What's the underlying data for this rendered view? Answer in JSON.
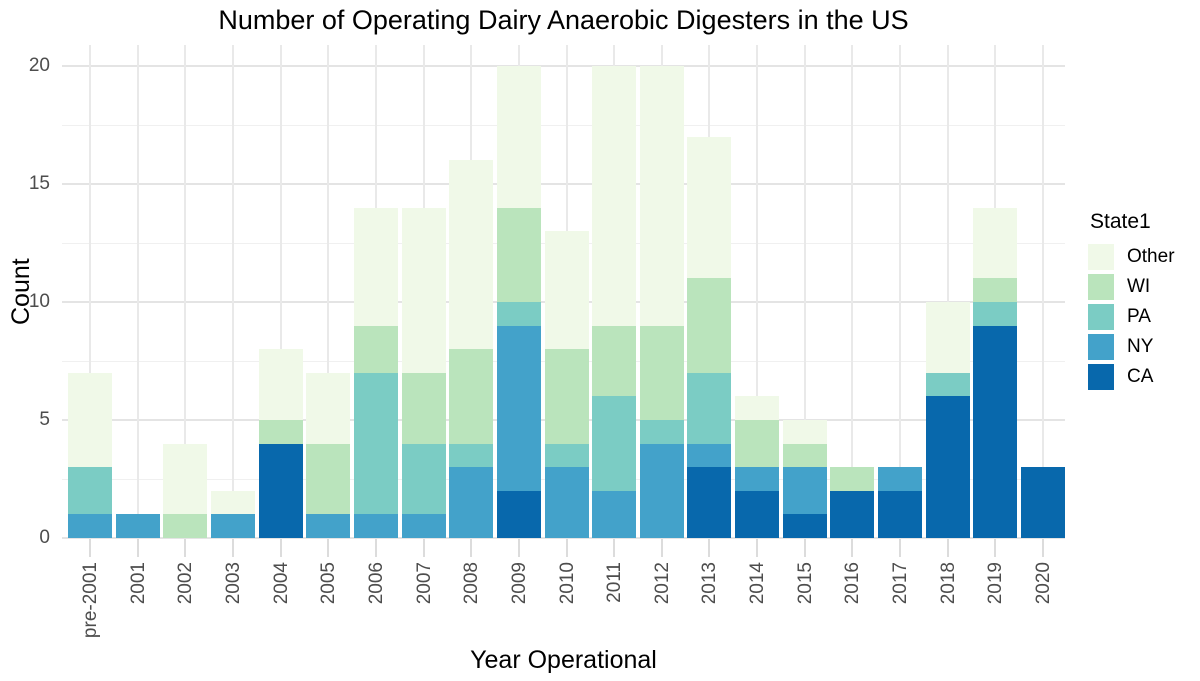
{
  "chart_data": {
    "type": "bar",
    "stacked": true,
    "title": "Number of Operating Dairy Anaerobic Digesters in the US",
    "xlabel": "Year Operational",
    "ylabel": "Count",
    "ylim": [
      0,
      20.9
    ],
    "yticks": [
      0,
      5,
      10,
      15,
      20
    ],
    "yminor": [
      2.5,
      7.5,
      12.5,
      17.5
    ],
    "grid": "major-and-minor, vertical at each category",
    "legend_title": "State1",
    "legend_position": "right",
    "legend_order_top_to_bottom": [
      "Other",
      "WI",
      "PA",
      "NY",
      "CA"
    ],
    "categories": [
      "pre-2001",
      "2001",
      "2002",
      "2003",
      "2004",
      "2005",
      "2006",
      "2007",
      "2008",
      "2009",
      "2010",
      "2011",
      "2012",
      "2013",
      "2014",
      "2015",
      "2016",
      "2017",
      "2018",
      "2019",
      "2020"
    ],
    "series": [
      {
        "name": "CA",
        "color": "#0868ac",
        "values": [
          0,
          0,
          0,
          0,
          4,
          0,
          0,
          0,
          0,
          2,
          0,
          0,
          0,
          3,
          2,
          1,
          2,
          2,
          6,
          9,
          3
        ]
      },
      {
        "name": "NY",
        "color": "#43a2ca",
        "values": [
          1,
          1,
          0,
          1,
          0,
          1,
          1,
          1,
          3,
          7,
          3,
          2,
          4,
          1,
          1,
          2,
          0,
          1,
          0,
          0,
          0
        ]
      },
      {
        "name": "PA",
        "color": "#7bccc4",
        "values": [
          2,
          0,
          0,
          0,
          0,
          0,
          6,
          3,
          1,
          1,
          1,
          4,
          1,
          3,
          0,
          0,
          0,
          0,
          1,
          1,
          0
        ]
      },
      {
        "name": "WI",
        "color": "#bae4bc",
        "values": [
          0,
          0,
          1,
          0,
          1,
          3,
          2,
          3,
          4,
          4,
          4,
          3,
          4,
          4,
          2,
          1,
          1,
          0,
          0,
          1,
          0
        ]
      },
      {
        "name": "Other",
        "color": "#f0f9e8",
        "values": [
          4,
          0,
          3,
          1,
          3,
          3,
          5,
          7,
          8,
          6,
          5,
          11,
          11,
          6,
          1,
          1,
          0,
          0,
          3,
          3,
          0
        ]
      }
    ],
    "totals": [
      7,
      1,
      4,
      2,
      8,
      7,
      14,
      14,
      16,
      20,
      13,
      20,
      20,
      17,
      6,
      5,
      3,
      3,
      10,
      14,
      3
    ]
  },
  "palette": {
    "background": "#ffffff",
    "grid_major": "#e4e4e4",
    "grid_minor": "#f0f0f0",
    "grid_vertical": "#e9e9e9",
    "axis_tick": "#dcdcdc",
    "axis_text": "#4d4d4d",
    "title_text": "#000000"
  }
}
